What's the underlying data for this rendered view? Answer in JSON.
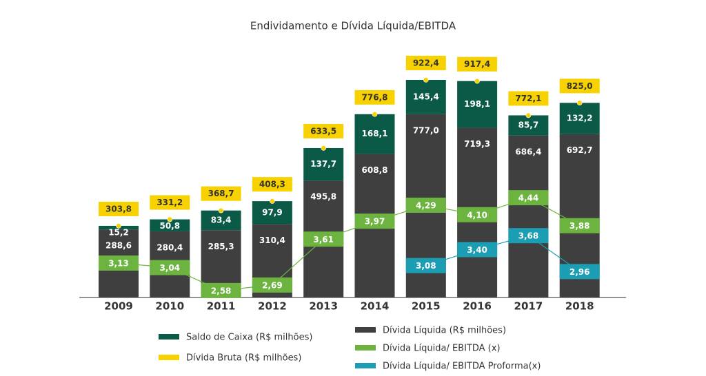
{
  "chart_data": {
    "type": "bar",
    "stacked": true,
    "title": "Endividamento e Dívida Líquida/EBITDA",
    "categories": [
      "2009",
      "2010",
      "2011",
      "2012",
      "2013",
      "2014",
      "2015",
      "2016",
      "2017",
      "2018"
    ],
    "ylim": [
      0,
      1000
    ],
    "y2lim": [
      2.44,
      7.17
    ],
    "series": [
      {
        "name": "Dívida Líquida (R$ milhões)",
        "color": "#3f3f3f",
        "type": "bar",
        "values": [
          288.6,
          280.4,
          285.3,
          310.4,
          495.8,
          608.8,
          777.0,
          719.3,
          686.4,
          692.7
        ],
        "value_labels": [
          "288,6",
          "280,4",
          "285,3",
          "310,4",
          "495,8",
          "608,8",
          "777,0",
          "719,3",
          "686,4",
          "692,7"
        ]
      },
      {
        "name": "Saldo de Caixa (R$ milhões)",
        "color": "#0b5a48",
        "type": "bar",
        "values": [
          15.2,
          50.8,
          83.4,
          97.9,
          137.7,
          168.1,
          145.4,
          198.1,
          85.7,
          132.2
        ],
        "value_labels": [
          "15,2",
          "50,8",
          "83,4",
          "97,9",
          "137,7",
          "168,1",
          "145,4",
          "198,1",
          "85,7",
          "132,2"
        ]
      },
      {
        "name": "Dívida Bruta (R$ milhões)",
        "color": "#f7d100",
        "type": "marker",
        "values": [
          303.8,
          331.2,
          368.7,
          408.3,
          633.5,
          776.8,
          922.4,
          917.4,
          772.1,
          825.0
        ],
        "value_labels": [
          "303,8",
          "331,2",
          "368,7",
          "408,3",
          "633,5",
          "776,8",
          "922,4",
          "917,4",
          "772,1",
          "825,0"
        ]
      },
      {
        "name": "Dívida Líquida/ EBITDA (x)",
        "color": "#6db33f",
        "type": "line",
        "axis": "y2",
        "values": [
          3.13,
          3.04,
          2.58,
          2.69,
          3.61,
          3.97,
          4.29,
          4.1,
          4.44,
          3.88
        ],
        "value_labels": [
          "3,13",
          "3,04",
          "2,58",
          "2,69",
          "3,61",
          "3,97",
          "4,29",
          "4,10",
          "4,44",
          "3,88"
        ]
      },
      {
        "name": "Dívida Líquida/ EBITDA Proforma(x)",
        "color": "#1b9db3",
        "type": "line",
        "axis": "y2",
        "values": [
          null,
          null,
          null,
          null,
          null,
          null,
          3.08,
          3.4,
          3.68,
          2.96
        ],
        "value_labels": [
          null,
          null,
          null,
          null,
          null,
          null,
          "3,08",
          "3,40",
          "3,68",
          "2,96"
        ]
      }
    ]
  }
}
